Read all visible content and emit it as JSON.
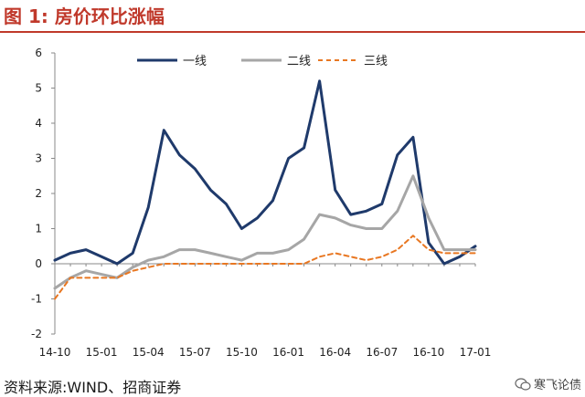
{
  "header": {
    "title": "图 1:  房价环比涨幅"
  },
  "footer": {
    "source": "资料来源:WIND、招商证券",
    "watermark": "寒飞论债"
  },
  "chart_data": {
    "type": "line",
    "title": "",
    "xlabel": "",
    "ylabel": "",
    "ylim": [
      -2,
      6
    ],
    "yticks": [
      -2,
      -1,
      0,
      1,
      2,
      3,
      4,
      5,
      6
    ],
    "x_tick_labels": [
      "14-10",
      "15-01",
      "15-04",
      "15-07",
      "15-10",
      "16-01",
      "16-04",
      "16-07",
      "16-10",
      "17-01"
    ],
    "categories": [
      "14-10",
      "14-11",
      "14-12",
      "15-01",
      "15-02",
      "15-03",
      "15-04",
      "15-05",
      "15-06",
      "15-07",
      "15-08",
      "15-09",
      "15-10",
      "15-11",
      "15-12",
      "16-01",
      "16-02",
      "16-03",
      "16-04",
      "16-05",
      "16-06",
      "16-07",
      "16-08",
      "16-09",
      "16-10",
      "16-11",
      "16-12",
      "17-01"
    ],
    "legend_position": "top",
    "series": [
      {
        "name": "一线",
        "color": "#1f3a6b",
        "dash": "solid",
        "values": [
          0.1,
          0.3,
          0.4,
          0.2,
          0.0,
          0.3,
          1.6,
          3.8,
          3.1,
          2.7,
          2.1,
          1.7,
          1.0,
          1.3,
          1.8,
          3.0,
          3.3,
          5.2,
          2.1,
          1.4,
          1.5,
          1.7,
          3.1,
          3.6,
          0.6,
          0.0,
          0.2,
          0.5
        ]
      },
      {
        "name": "二线",
        "color": "#a6a6a6",
        "dash": "solid",
        "values": [
          -0.7,
          -0.4,
          -0.2,
          -0.3,
          -0.4,
          -0.1,
          0.1,
          0.2,
          0.4,
          0.4,
          0.3,
          0.2,
          0.1,
          0.3,
          0.3,
          0.4,
          0.7,
          1.4,
          1.3,
          1.1,
          1.0,
          1.0,
          1.5,
          2.5,
          1.3,
          0.4,
          0.4,
          0.4
        ]
      },
      {
        "name": "三线",
        "color": "#e87722",
        "dash": "dashed",
        "values": [
          -1.0,
          -0.4,
          -0.4,
          -0.4,
          -0.4,
          -0.2,
          -0.1,
          0.0,
          0.0,
          0.0,
          0.0,
          0.0,
          0.0,
          0.0,
          0.0,
          0.0,
          0.0,
          0.2,
          0.3,
          0.2,
          0.1,
          0.2,
          0.4,
          0.8,
          0.4,
          0.3,
          0.3,
          0.3
        ]
      }
    ]
  }
}
